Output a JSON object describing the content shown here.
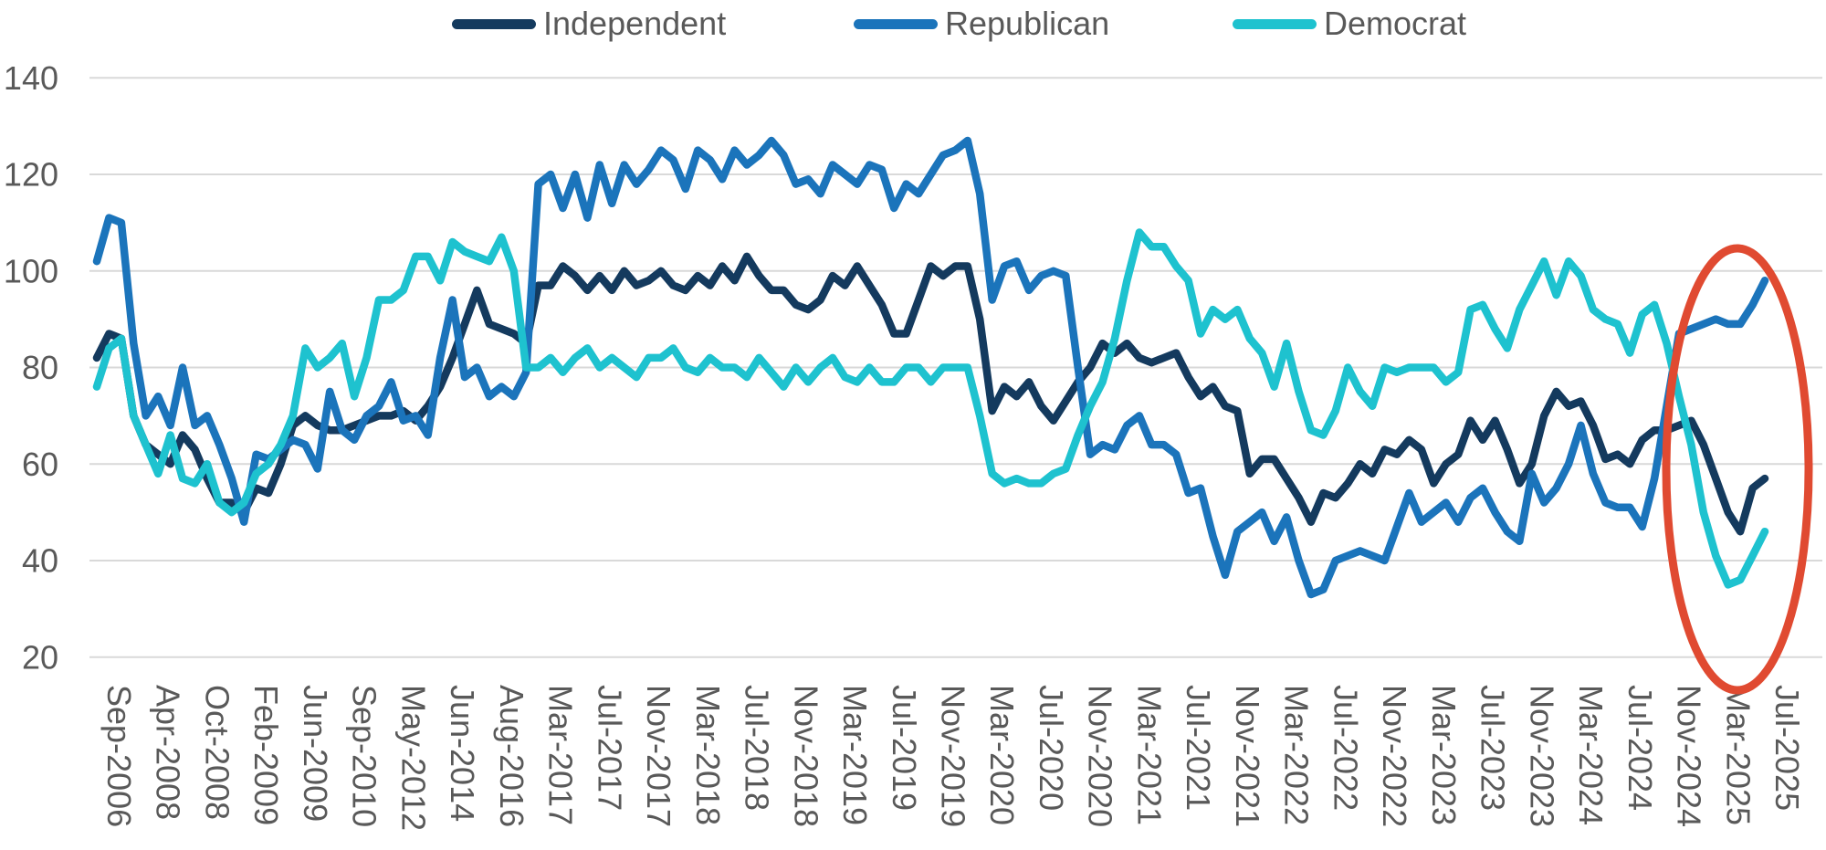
{
  "legend": {
    "items": [
      {
        "label": "Independent",
        "color": "#143A5E"
      },
      {
        "label": "Republican",
        "color": "#1B74BB"
      },
      {
        "label": "Democrat",
        "color": "#1EC2CF"
      }
    ]
  },
  "colors": {
    "gridline": "#D9D9D9",
    "axis_text": "#595959",
    "annotation": "#E04A31"
  },
  "chart_data": {
    "type": "line",
    "title": "",
    "xlabel": "",
    "ylabel": "",
    "ylim": [
      20,
      140
    ],
    "y_ticks": [
      140,
      120,
      100,
      80,
      60,
      40,
      20
    ],
    "grid": "horizontal",
    "legend_position": "top",
    "label_every": 4,
    "x_tick_labels": [
      "Sep-2006",
      "Apr-2008",
      "Oct-2008",
      "Feb-2009",
      "Jun-2009",
      "Sep-2010",
      "May-2012",
      "Jun-2014",
      "Aug-2016",
      "Mar-2017",
      "Jul-2017",
      "Nov-2017",
      "Mar-2018",
      "Jul-2018",
      "Nov-2018",
      "Mar-2019",
      "Jul-2019",
      "Nov-2019",
      "Mar-2020",
      "Jul-2020",
      "Nov-2020",
      "Mar-2021",
      "Jul-2021",
      "Nov-2021",
      "Mar-2022",
      "Jul-2022",
      "Nov-2022",
      "Mar-2023",
      "Jul-2023",
      "Nov-2023",
      "Mar-2024",
      "Jul-2024",
      "Nov-2024",
      "Mar-2025",
      "Jul-2025"
    ],
    "series": [
      {
        "name": "Independent",
        "color": "#143A5E",
        "values": [
          82,
          87,
          86,
          70,
          64,
          62,
          60,
          66,
          63,
          57,
          52,
          52,
          50,
          55,
          54,
          60,
          68,
          70,
          68,
          67,
          67,
          68,
          69,
          70,
          70,
          71,
          69,
          72,
          76,
          82,
          89,
          96,
          89,
          88,
          87,
          85,
          97,
          97,
          101,
          99,
          96,
          99,
          96,
          100,
          97,
          98,
          100,
          97,
          96,
          99,
          97,
          101,
          98,
          103,
          99,
          96,
          96,
          93,
          92,
          94,
          99,
          97,
          101,
          97,
          93,
          87,
          87,
          94,
          101,
          99,
          101,
          101,
          90,
          71,
          76,
          74,
          77,
          72,
          69,
          73,
          77,
          80,
          85,
          83,
          85,
          82,
          81,
          82,
          83,
          78,
          74,
          76,
          72,
          71,
          58,
          61,
          61,
          57,
          53,
          48,
          54,
          53,
          56,
          60,
          58,
          63,
          62,
          65,
          63,
          56,
          60,
          62,
          69,
          65,
          69,
          63,
          56,
          60,
          70,
          75,
          72,
          73,
          68,
          61,
          62,
          60,
          65,
          67,
          67,
          68,
          69,
          64,
          57,
          50,
          46,
          55,
          57
        ]
      },
      {
        "name": "Republican",
        "color": "#1B74BB",
        "values": [
          102,
          111,
          110,
          85,
          70,
          74,
          68,
          80,
          68,
          70,
          64,
          57,
          48,
          62,
          61,
          63,
          65,
          64,
          59,
          75,
          67,
          65,
          70,
          72,
          77,
          69,
          70,
          66,
          82,
          94,
          78,
          80,
          74,
          76,
          74,
          79,
          118,
          120,
          113,
          120,
          111,
          122,
          114,
          122,
          118,
          121,
          125,
          123,
          117,
          125,
          123,
          119,
          125,
          122,
          124,
          127,
          124,
          118,
          119,
          116,
          122,
          120,
          118,
          122,
          121,
          113,
          118,
          116,
          120,
          124,
          125,
          127,
          116,
          94,
          101,
          102,
          96,
          99,
          100,
          99,
          80,
          62,
          64,
          63,
          68,
          70,
          64,
          64,
          62,
          54,
          55,
          45,
          37,
          46,
          48,
          50,
          44,
          49,
          40,
          33,
          34,
          40,
          41,
          42,
          41,
          40,
          47,
          54,
          48,
          50,
          52,
          48,
          53,
          55,
          50,
          46,
          44,
          58,
          52,
          55,
          60,
          68,
          58,
          52,
          51,
          51,
          47,
          57,
          72,
          87,
          88,
          89,
          90,
          89,
          89,
          93,
          98
        ]
      },
      {
        "name": "Democrat",
        "color": "#1EC2CF",
        "values": [
          76,
          84,
          86,
          70,
          64,
          58,
          66,
          57,
          56,
          60,
          52,
          50,
          52,
          58,
          60,
          64,
          70,
          84,
          80,
          82,
          85,
          74,
          82,
          94,
          94,
          96,
          103,
          103,
          98,
          106,
          104,
          103,
          102,
          107,
          100,
          80,
          80,
          82,
          79,
          82,
          84,
          80,
          82,
          80,
          78,
          82,
          82,
          84,
          80,
          79,
          82,
          80,
          80,
          78,
          82,
          79,
          76,
          80,
          77,
          80,
          82,
          78,
          77,
          80,
          77,
          77,
          80,
          80,
          77,
          80,
          80,
          80,
          70,
          58,
          56,
          57,
          56,
          56,
          58,
          59,
          66,
          72,
          77,
          86,
          98,
          108,
          105,
          105,
          101,
          98,
          87,
          92,
          90,
          92,
          86,
          83,
          76,
          85,
          75,
          67,
          66,
          71,
          80,
          75,
          72,
          80,
          79,
          80,
          80,
          80,
          77,
          79,
          92,
          93,
          88,
          84,
          92,
          97,
          102,
          95,
          102,
          99,
          92,
          90,
          89,
          83,
          91,
          93,
          85,
          74,
          64,
          50,
          41,
          35,
          36,
          41,
          46
        ]
      }
    ],
    "annotation": {
      "type": "ellipse",
      "color": "#E04A31",
      "highlighted_range": [
        "Nov-2024",
        "Jul-2025"
      ],
      "note": "circles the post-2024-election partisan flip: Republican rises to ~98, Democrat falls to ~35, Independent dips to ~46"
    }
  }
}
